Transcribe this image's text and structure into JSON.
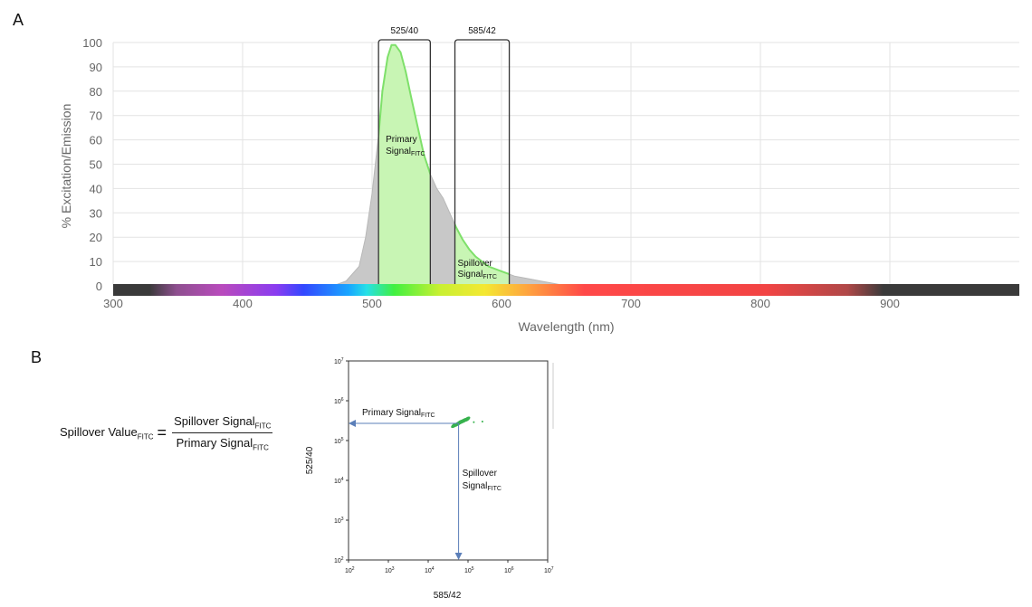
{
  "panels": {
    "a": "A",
    "b": "B"
  },
  "chart_data": [
    {
      "type": "area",
      "panel": "A",
      "xlabel": "Wavelength (nm)",
      "ylabel": "% Excitation/Emission",
      "xlim": [
        300,
        1000
      ],
      "ylim": [
        0,
        100
      ],
      "x_ticks": [
        300,
        400,
        500,
        600,
        700,
        800,
        900
      ],
      "y_ticks": [
        0,
        10,
        20,
        30,
        40,
        50,
        60,
        70,
        80,
        90,
        100
      ],
      "grid": true,
      "series": [
        {
          "x": [
            470,
            480,
            490,
            495,
            500,
            505,
            508,
            512,
            515,
            518,
            522,
            526,
            530,
            535,
            540,
            545,
            550,
            555,
            560,
            565,
            570,
            575,
            580,
            590,
            600,
            610,
            620,
            630,
            640,
            650
          ],
          "y": [
            0,
            2,
            8,
            20,
            38,
            62,
            80,
            94,
            99,
            99,
            96,
            88,
            78,
            66,
            54,
            46,
            40,
            36,
            30,
            24,
            19,
            15,
            12,
            8,
            6,
            4,
            3,
            2,
            1,
            0
          ]
        }
      ],
      "filters": [
        {
          "label": "525/40",
          "from": 505,
          "to": 545
        },
        {
          "label": "585/42",
          "from": 564,
          "to": 606
        }
      ],
      "annotations": [
        {
          "text": "Primary Signal",
          "sub": "FITC",
          "pre": "Primary",
          "main": "Signal"
        },
        {
          "text": "Spillover Signal",
          "sub": "FITC",
          "pre": "Spillover",
          "main": "Signal"
        }
      ],
      "colors": {
        "emission": "#c8c8c8",
        "fill_highlight": "#c8f5b4",
        "line_highlight": "#7ee06a"
      }
    },
    {
      "type": "scatter",
      "panel": "B",
      "xlabel": "585/42",
      "ylabel": "525/40",
      "scale": "log",
      "x_ticks_exp": [
        2,
        3,
        4,
        5,
        6,
        7
      ],
      "y_ticks_exp": [
        2,
        3,
        4,
        5,
        6,
        7
      ],
      "tick_base": "10",
      "points": {
        "x": [
          45000,
          52000,
          58000,
          62000,
          70000,
          80000,
          95000,
          140000,
          230000
        ],
        "y": [
          240000,
          255000,
          270000,
          285000,
          300000,
          320000,
          345000,
          290000,
          300000
        ]
      },
      "primary_label": {
        "main": "Primary Signal",
        "sub": "FITC"
      },
      "spillover_label": {
        "pre": "Spillover",
        "main": "Signal",
        "sub": "FITC"
      },
      "colors": {
        "points": "#37b24d",
        "arrow": "#5b7fb9"
      }
    }
  ],
  "formula": {
    "lhs": "Spillover Value",
    "lhs_sub": "FITC",
    "eq": "=",
    "num": "Spillover Signal",
    "num_sub": "FITC",
    "den": "Primary Signal",
    "den_sub": "FITC"
  }
}
